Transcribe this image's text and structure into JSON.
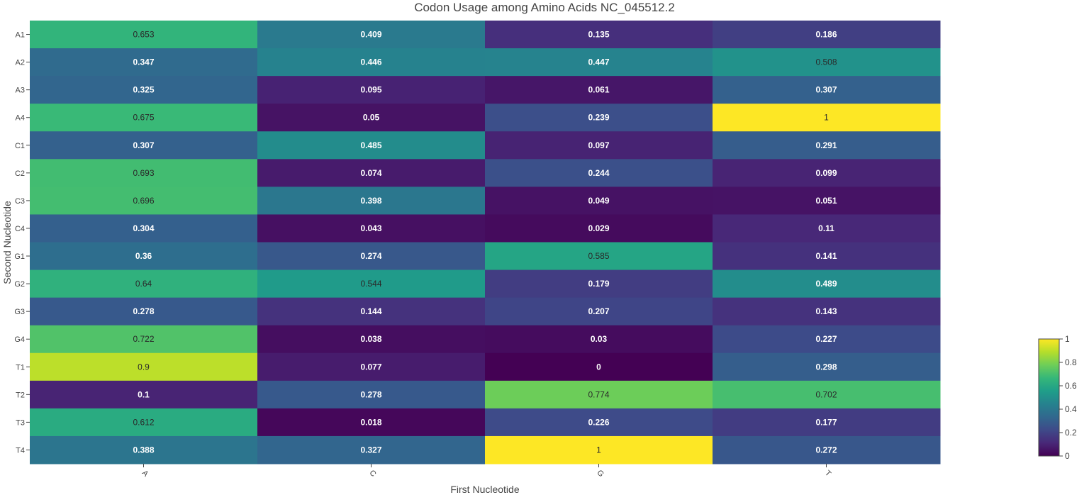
{
  "chart_data": {
    "type": "heatmap",
    "title": "Codon Usage among Amino Acids NC_045512.2",
    "xlabel": "First Nucleotide",
    "ylabel": "Second Nucleotide",
    "x_categories": [
      "A",
      "C",
      "G",
      "T"
    ],
    "y_categories": [
      "A1",
      "A2",
      "A3",
      "A4",
      "C1",
      "C2",
      "C3",
      "C4",
      "G1",
      "G2",
      "G3",
      "G4",
      "T1",
      "T2",
      "T3",
      "T4"
    ],
    "values": [
      [
        0.653,
        0.409,
        0.135,
        0.186
      ],
      [
        0.347,
        0.446,
        0.447,
        0.508
      ],
      [
        0.325,
        0.095,
        0.061,
        0.307
      ],
      [
        0.675,
        0.05,
        0.239,
        1
      ],
      [
        0.307,
        0.485,
        0.097,
        0.291
      ],
      [
        0.693,
        0.074,
        0.244,
        0.099
      ],
      [
        0.696,
        0.398,
        0.049,
        0.051
      ],
      [
        0.304,
        0.043,
        0.029,
        0.11
      ],
      [
        0.36,
        0.274,
        0.585,
        0.141
      ],
      [
        0.64,
        0.544,
        0.179,
        0.489
      ],
      [
        0.278,
        0.144,
        0.207,
        0.143
      ],
      [
        0.722,
        0.038,
        0.03,
        0.227
      ],
      [
        0.9,
        0.077,
        0,
        0.298
      ],
      [
        0.1,
        0.278,
        0.774,
        0.702
      ],
      [
        0.612,
        0.018,
        0.226,
        0.177
      ],
      [
        0.388,
        0.327,
        1,
        0.272
      ]
    ],
    "zlim": [
      0,
      1
    ],
    "colorscale": "Viridis",
    "colorbar_ticks": [
      "0",
      "0.2",
      "0.4",
      "0.6",
      "0.8",
      "1"
    ],
    "legend_position": "right"
  }
}
